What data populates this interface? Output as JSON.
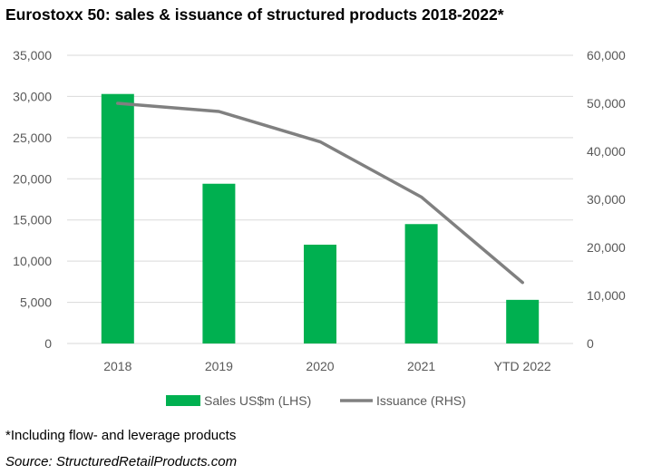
{
  "title": "Eurostoxx 50: sales & issuance of structured products 2018-2022*",
  "footnote": "*Including flow- and leverage products",
  "source": "Source: StructuredRetailProducts.com",
  "chart_data": {
    "type": "bar",
    "categories": [
      "2018",
      "2019",
      "2020",
      "2021",
      "YTD 2022"
    ],
    "series": [
      {
        "name": "Sales US$m (LHS)",
        "type": "bar",
        "axis": "left",
        "color": "#00B050",
        "values": [
          30300,
          19400,
          12000,
          14500,
          5300
        ]
      },
      {
        "name": "Issuance (RHS)",
        "type": "line",
        "axis": "right",
        "color": "#808080",
        "values": [
          50000,
          48300,
          42000,
          30500,
          12700
        ]
      }
    ],
    "y_left": {
      "min": 0,
      "max": 35000,
      "step": 5000,
      "ticks": [
        "0",
        "5,000",
        "10,000",
        "15,000",
        "20,000",
        "25,000",
        "30,000",
        "35,000"
      ]
    },
    "y_right": {
      "min": 0,
      "max": 60000,
      "step": 10000,
      "ticks": [
        "0",
        "10,000",
        "20,000",
        "30,000",
        "40,000",
        "50,000",
        "60,000"
      ]
    },
    "grid": true,
    "legend": "bottom"
  }
}
